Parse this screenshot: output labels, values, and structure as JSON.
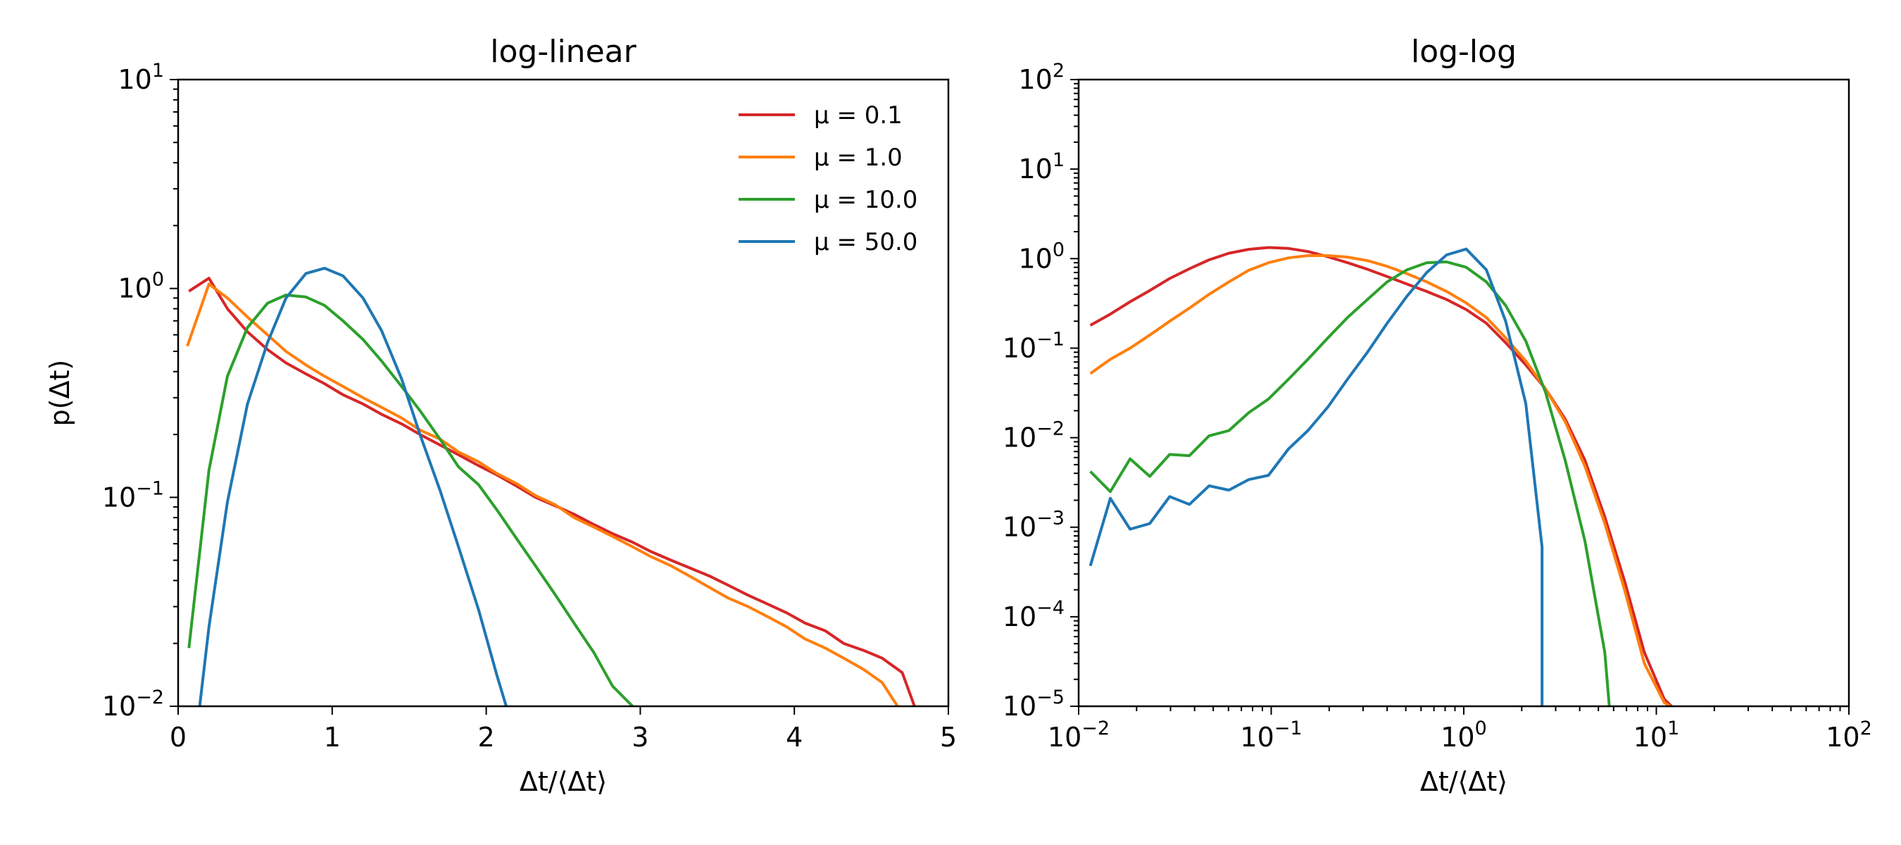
{
  "chart_data": [
    {
      "type": "line",
      "title": "log-linear",
      "xlabel": "Δt/⟨Δt⟩",
      "ylabel": "p(Δt)",
      "xscale": "linear",
      "yscale": "log",
      "xlim": [
        0,
        5
      ],
      "ylim": [
        0.01,
        10
      ],
      "xticks": [
        0,
        1,
        2,
        3,
        4,
        5
      ],
      "xtick_labels": [
        "0",
        "1",
        "2",
        "3",
        "4",
        "5"
      ],
      "yticks": [
        0.01,
        0.1,
        1,
        10
      ],
      "ytick_labels": [
        {
          "base": "10",
          "exp": "−2"
        },
        {
          "base": "10",
          "exp": "−1"
        },
        {
          "base": "10",
          "exp": "0"
        },
        {
          "base": "10",
          "exp": "1"
        }
      ],
      "grid": false,
      "legend": {
        "position": "top-right"
      },
      "series": [
        {
          "name": "μ = 0.1",
          "color": "#d62728",
          "x": [
            0.07,
            0.2,
            0.32,
            0.45,
            0.58,
            0.7,
            0.83,
            0.95,
            1.07,
            1.2,
            1.32,
            1.45,
            1.57,
            1.7,
            1.82,
            1.95,
            2.07,
            2.2,
            2.32,
            2.45,
            2.57,
            2.7,
            2.82,
            2.95,
            3.07,
            3.2,
            3.32,
            3.45,
            3.57,
            3.7,
            3.82,
            3.95,
            4.07,
            4.2,
            4.32,
            4.45,
            4.57,
            4.7,
            4.78
          ],
          "y": [
            0.97,
            1.12,
            0.8,
            0.62,
            0.51,
            0.44,
            0.39,
            0.35,
            0.31,
            0.28,
            0.25,
            0.225,
            0.2,
            0.178,
            0.16,
            0.142,
            0.128,
            0.113,
            0.1,
            0.091,
            0.083,
            0.074,
            0.067,
            0.061,
            0.055,
            0.05,
            0.046,
            0.042,
            0.038,
            0.034,
            0.031,
            0.028,
            0.025,
            0.023,
            0.02,
            0.0185,
            0.017,
            0.0145,
            0.01
          ]
        },
        {
          "name": "μ = 1.0",
          "color": "#ff7f0e",
          "x": [
            0.06,
            0.2,
            0.32,
            0.45,
            0.58,
            0.7,
            0.83,
            0.95,
            1.07,
            1.2,
            1.32,
            1.45,
            1.57,
            1.7,
            1.82,
            1.95,
            2.07,
            2.2,
            2.32,
            2.45,
            2.57,
            2.7,
            2.82,
            2.95,
            3.07,
            3.2,
            3.32,
            3.45,
            3.57,
            3.7,
            3.82,
            3.95,
            4.07,
            4.2,
            4.32,
            4.45,
            4.57,
            4.67
          ],
          "y": [
            0.53,
            1.05,
            0.9,
            0.73,
            0.6,
            0.5,
            0.43,
            0.38,
            0.34,
            0.3,
            0.27,
            0.24,
            0.21,
            0.19,
            0.165,
            0.148,
            0.13,
            0.116,
            0.102,
            0.092,
            0.08,
            0.072,
            0.065,
            0.058,
            0.052,
            0.047,
            0.042,
            0.037,
            0.033,
            0.03,
            0.027,
            0.024,
            0.021,
            0.019,
            0.017,
            0.015,
            0.013,
            0.01
          ]
        },
        {
          "name": "μ = 10.0",
          "color": "#2ca02c",
          "x": [
            0.07,
            0.2,
            0.32,
            0.45,
            0.58,
            0.7,
            0.83,
            0.95,
            1.07,
            1.2,
            1.32,
            1.45,
            1.57,
            1.7,
            1.82,
            1.95,
            2.07,
            2.2,
            2.32,
            2.45,
            2.57,
            2.7,
            2.82,
            2.95
          ],
          "y": [
            0.019,
            0.135,
            0.38,
            0.65,
            0.85,
            0.93,
            0.91,
            0.83,
            0.7,
            0.57,
            0.45,
            0.34,
            0.26,
            0.19,
            0.14,
            0.115,
            0.087,
            0.063,
            0.047,
            0.034,
            0.025,
            0.018,
            0.0125,
            0.01
          ]
        },
        {
          "name": "μ = 50.0",
          "color": "#1f77b4",
          "x": [
            0.14,
            0.2,
            0.32,
            0.45,
            0.58,
            0.7,
            0.83,
            0.95,
            1.07,
            1.2,
            1.32,
            1.45,
            1.57,
            1.7,
            1.82,
            1.95,
            2.07,
            2.13
          ],
          "y": [
            0.01,
            0.024,
            0.095,
            0.28,
            0.55,
            0.9,
            1.18,
            1.25,
            1.15,
            0.9,
            0.63,
            0.37,
            0.2,
            0.108,
            0.058,
            0.029,
            0.014,
            0.01
          ]
        }
      ]
    },
    {
      "type": "line",
      "title": "log-log",
      "xlabel": "Δt/⟨Δt⟩",
      "ylabel": "",
      "xscale": "log",
      "yscale": "log",
      "xlim": [
        0.01,
        100
      ],
      "ylim": [
        1e-05,
        100
      ],
      "xticks": [
        0.01,
        0.1,
        1,
        10,
        100
      ],
      "xtick_labels": [
        {
          "base": "10",
          "exp": "−2"
        },
        {
          "base": "10",
          "exp": "−1"
        },
        {
          "base": "10",
          "exp": "0"
        },
        {
          "base": "10",
          "exp": "1"
        },
        {
          "base": "10",
          "exp": "2"
        }
      ],
      "yticks": [
        1e-05,
        0.0001,
        0.001,
        0.01,
        0.1,
        1,
        10,
        100
      ],
      "ytick_labels": [
        {
          "base": "10",
          "exp": "−5"
        },
        {
          "base": "10",
          "exp": "−4"
        },
        {
          "base": "10",
          "exp": "−3"
        },
        {
          "base": "10",
          "exp": "−2"
        },
        {
          "base": "10",
          "exp": "−1"
        },
        {
          "base": "10",
          "exp": "0"
        },
        {
          "base": "10",
          "exp": "1"
        },
        {
          "base": "10",
          "exp": "2"
        }
      ],
      "grid": false,
      "series": [
        {
          "name": "μ = 0.1",
          "color": "#d62728",
          "x": [
            0.0115,
            0.0146,
            0.0185,
            0.0234,
            0.0297,
            0.0376,
            0.0476,
            0.0603,
            0.0764,
            0.0968,
            0.123,
            0.155,
            0.197,
            0.249,
            0.316,
            0.4,
            0.507,
            0.642,
            0.814,
            1.03,
            1.31,
            1.65,
            2.1,
            2.66,
            3.37,
            4.26,
            5.4,
            6.84,
            8.67,
            11.0,
            12.0
          ],
          "y": [
            0.18,
            0.24,
            0.33,
            0.44,
            0.6,
            0.77,
            0.97,
            1.15,
            1.27,
            1.33,
            1.3,
            1.2,
            1.05,
            0.9,
            0.76,
            0.63,
            0.52,
            0.43,
            0.35,
            0.27,
            0.19,
            0.115,
            0.065,
            0.035,
            0.016,
            0.0056,
            0.0013,
            0.00025,
            4e-05,
            1.2e-05,
            1e-05
          ]
        },
        {
          "name": "μ = 1.0",
          "color": "#ff7f0e",
          "x": [
            0.0115,
            0.0146,
            0.0185,
            0.0234,
            0.0297,
            0.0376,
            0.0476,
            0.0603,
            0.0764,
            0.0968,
            0.123,
            0.155,
            0.197,
            0.249,
            0.316,
            0.4,
            0.507,
            0.642,
            0.814,
            1.03,
            1.31,
            1.65,
            2.1,
            2.66,
            3.37,
            4.26,
            5.4,
            6.84,
            8.67,
            11.0,
            11.8
          ],
          "y": [
            0.052,
            0.075,
            0.1,
            0.14,
            0.2,
            0.28,
            0.4,
            0.55,
            0.74,
            0.9,
            1.02,
            1.08,
            1.08,
            1.04,
            0.95,
            0.82,
            0.68,
            0.55,
            0.43,
            0.32,
            0.22,
            0.13,
            0.072,
            0.035,
            0.015,
            0.0048,
            0.0011,
            0.0002,
            3e-05,
            1.1e-05,
            1e-05
          ]
        },
        {
          "name": "μ = 10.0",
          "color": "#2ca02c",
          "x": [
            0.0115,
            0.0146,
            0.0185,
            0.0234,
            0.0297,
            0.0376,
            0.0476,
            0.0603,
            0.0764,
            0.0968,
            0.123,
            0.155,
            0.197,
            0.249,
            0.316,
            0.4,
            0.507,
            0.642,
            0.814,
            1.03,
            1.31,
            1.65,
            2.1,
            2.66,
            3.37,
            4.26,
            5.4,
            5.7
          ],
          "y": [
            0.0042,
            0.0025,
            0.0058,
            0.0037,
            0.0065,
            0.0063,
            0.0105,
            0.012,
            0.019,
            0.027,
            0.045,
            0.075,
            0.13,
            0.22,
            0.35,
            0.55,
            0.75,
            0.9,
            0.92,
            0.8,
            0.55,
            0.3,
            0.12,
            0.032,
            0.0055,
            0.0007,
            4e-05,
            1e-05
          ]
        },
        {
          "name": "μ = 50.0",
          "color": "#1f77b4",
          "x": [
            0.0115,
            0.0146,
            0.0185,
            0.0234,
            0.0297,
            0.0376,
            0.0476,
            0.0603,
            0.0764,
            0.0968,
            0.123,
            0.155,
            0.197,
            0.249,
            0.316,
            0.4,
            0.507,
            0.642,
            0.814,
            1.03,
            1.31,
            1.65,
            2.1,
            2.55,
            2.55
          ],
          "y": [
            0.00037,
            0.0021,
            0.00095,
            0.0011,
            0.0022,
            0.0018,
            0.0029,
            0.0026,
            0.0034,
            0.0038,
            0.0075,
            0.012,
            0.022,
            0.045,
            0.09,
            0.19,
            0.38,
            0.7,
            1.1,
            1.28,
            0.75,
            0.2,
            0.024,
            0.0006,
            1e-05
          ]
        }
      ]
    }
  ]
}
